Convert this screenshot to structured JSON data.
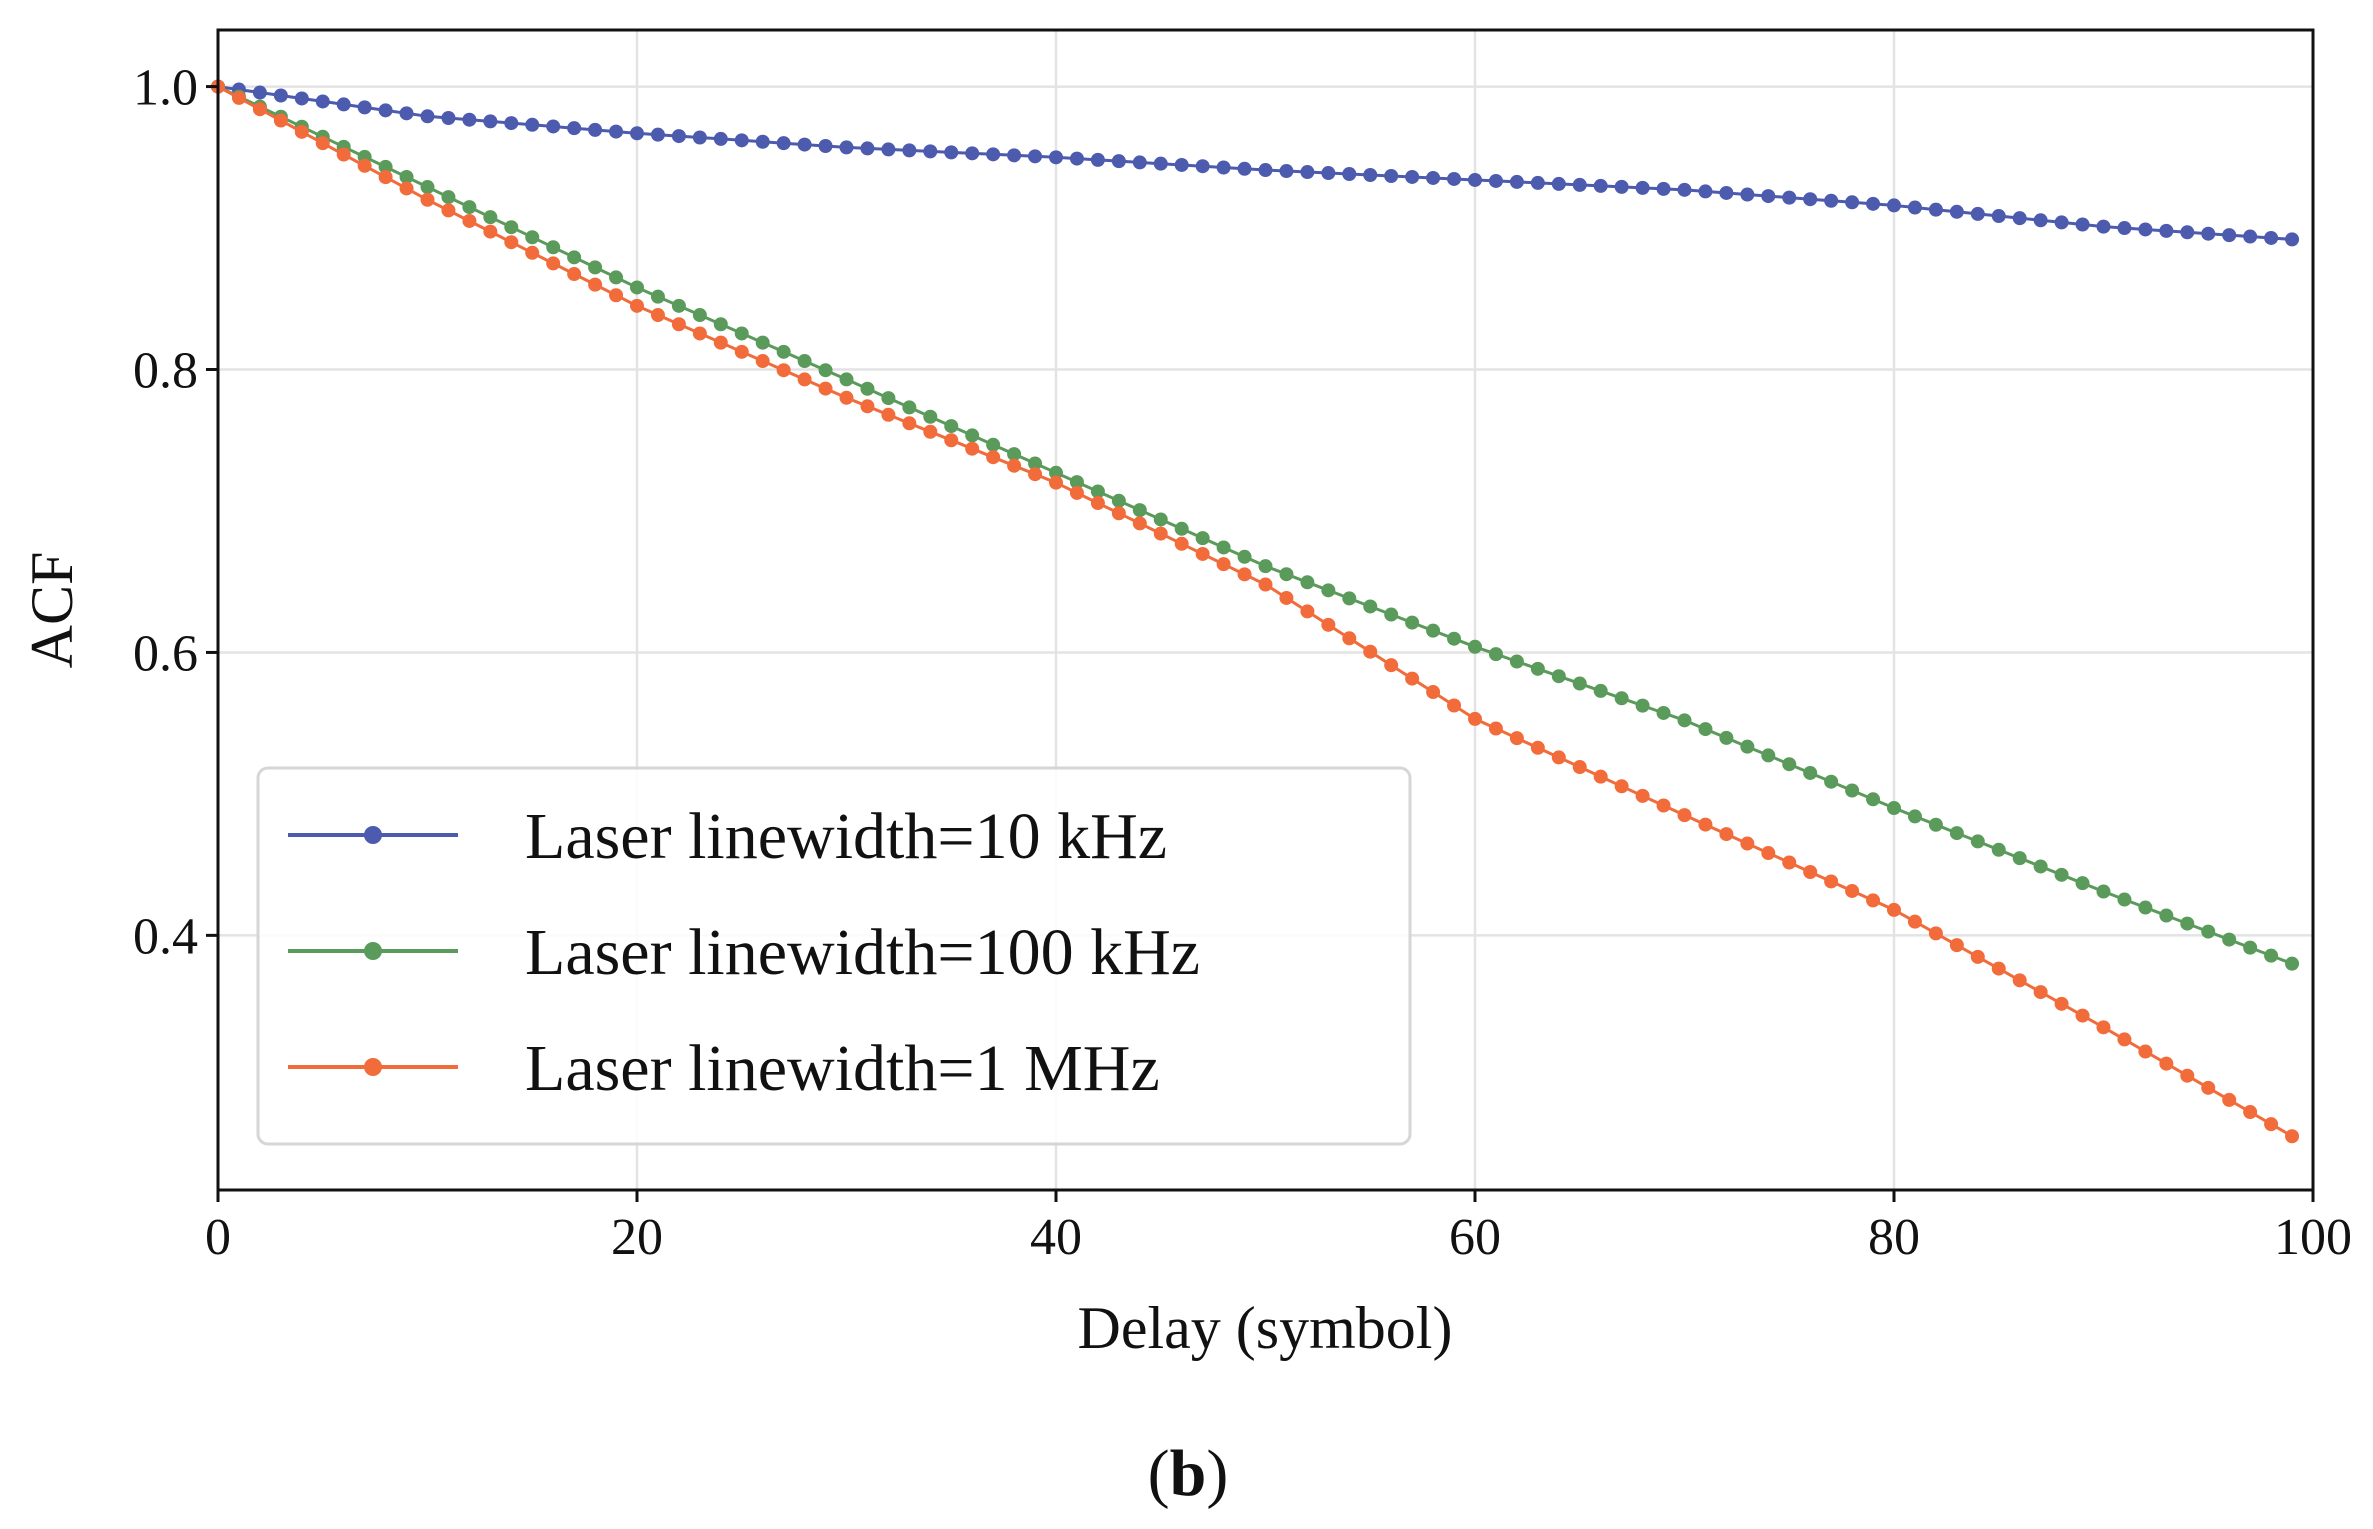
{
  "chart_data": {
    "type": "line",
    "title": "",
    "xlabel": "Delay (symbol)",
    "ylabel": "ACF",
    "xlim": [
      0,
      100
    ],
    "ylim": [
      0.22,
      1.04
    ],
    "xticks": [
      0,
      20,
      40,
      60,
      80,
      100
    ],
    "xtick_labels": [
      "0",
      "20",
      "40",
      "60",
      "80",
      "100"
    ],
    "yticks": [
      0.4,
      0.6,
      0.8,
      1.0
    ],
    "ytick_labels": [
      "0.4",
      "0.6",
      "0.8",
      "1.0"
    ],
    "grid": true,
    "legend_position": "lower-left",
    "x": [
      0,
      10,
      20,
      30,
      40,
      50,
      60,
      70,
      80,
      90,
      99
    ],
    "series": [
      {
        "name": "Laser linewidth=10 kHz",
        "color": "#4C5BAE",
        "values": [
          1.0,
          0.979,
          0.967,
          0.957,
          0.95,
          0.941,
          0.934,
          0.927,
          0.916,
          0.901,
          0.892
        ]
      },
      {
        "name": "Laser linewidth=100 kHz",
        "color": "#5A9A5A",
        "values": [
          1.0,
          0.929,
          0.858,
          0.793,
          0.727,
          0.661,
          0.604,
          0.552,
          0.49,
          0.431,
          0.38
        ]
      },
      {
        "name": "Laser linewidth=1 MHz",
        "color": "#F26B3A",
        "values": [
          1.0,
          0.92,
          0.845,
          0.78,
          0.72,
          0.648,
          0.553,
          0.485,
          0.418,
          0.335,
          0.258
        ]
      }
    ]
  },
  "caption": {
    "open": "(",
    "letter": "b",
    "close": ")"
  }
}
